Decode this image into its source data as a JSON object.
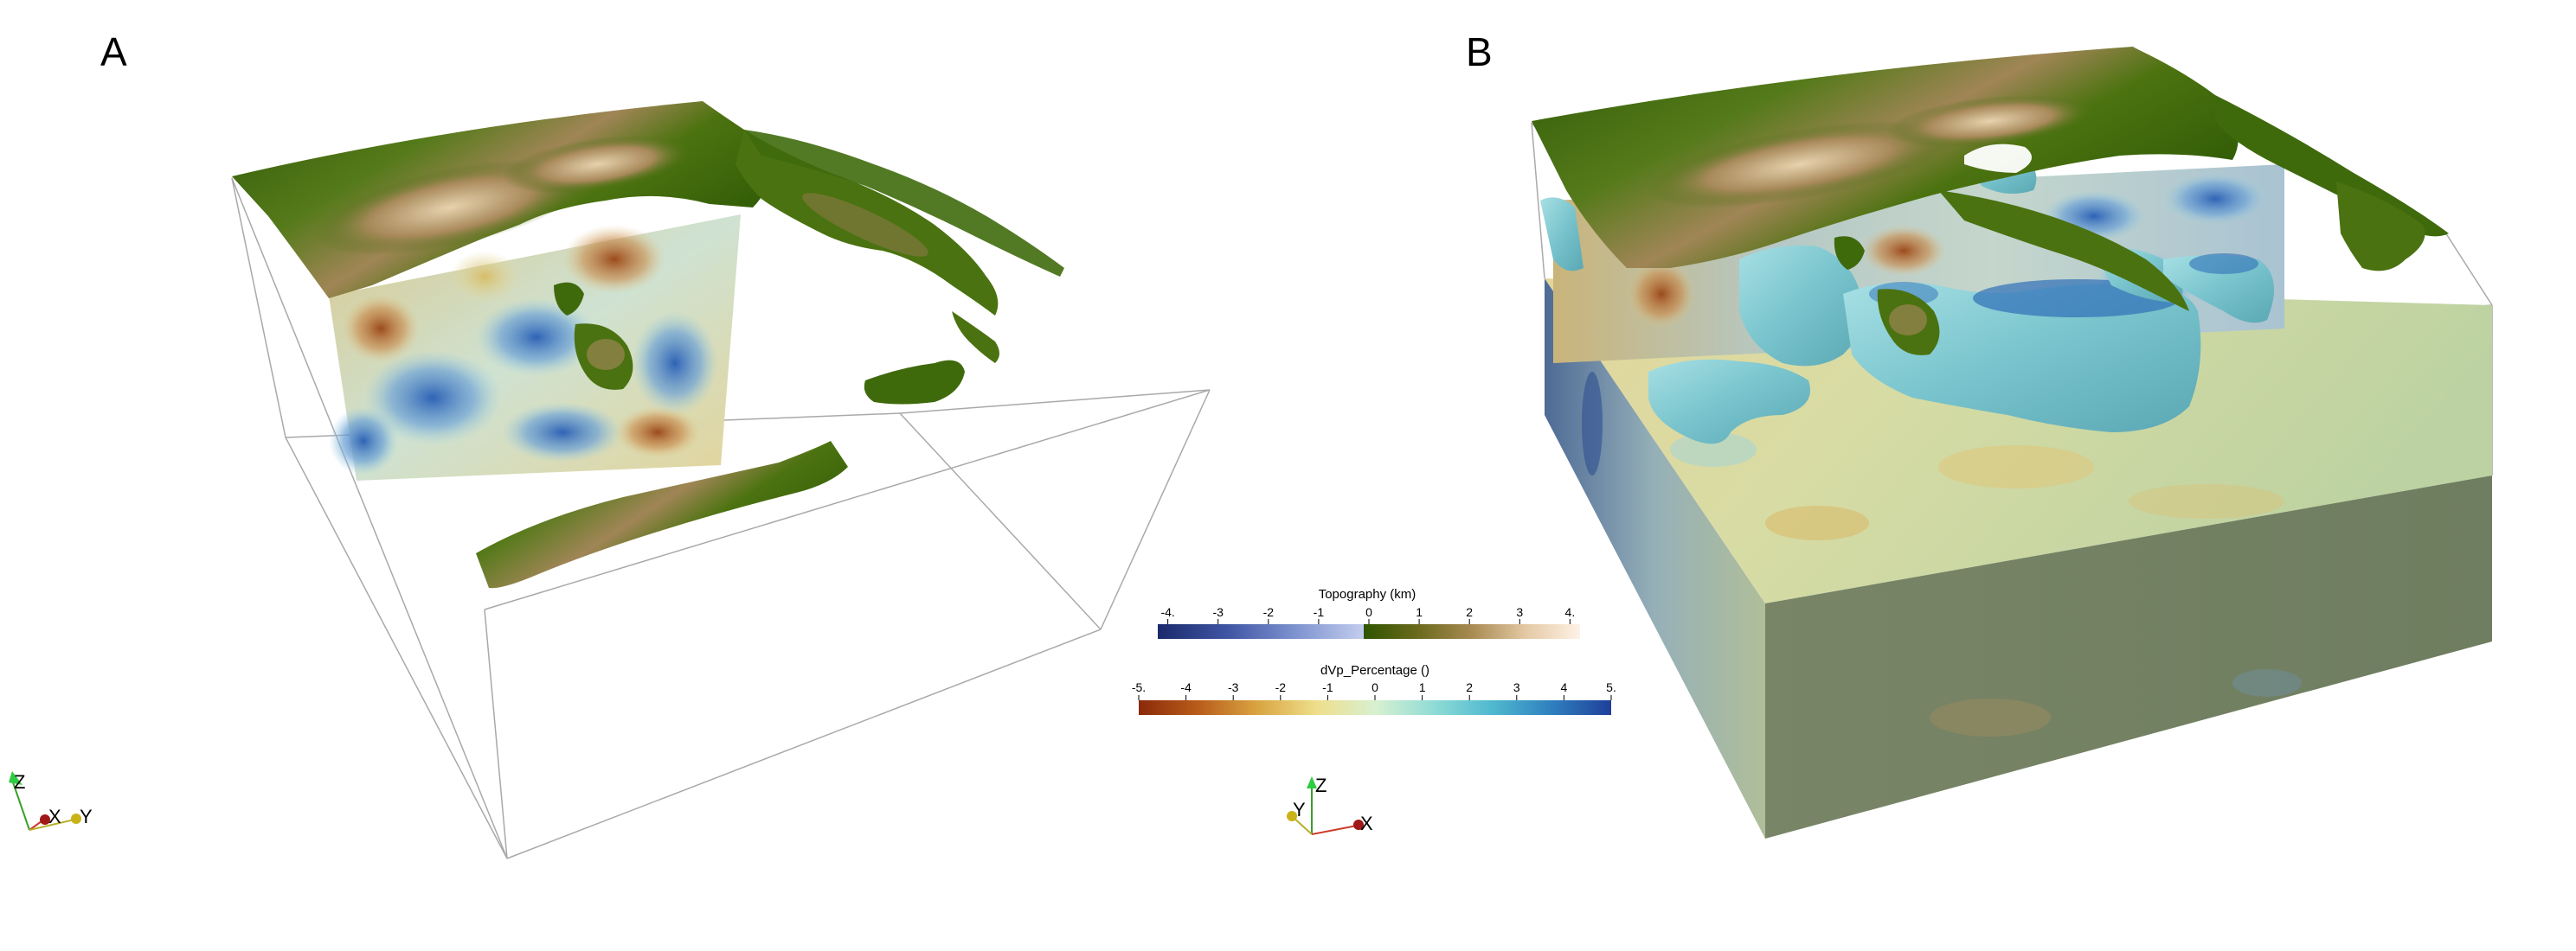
{
  "panels": [
    {
      "id": "A",
      "label": "A"
    },
    {
      "id": "B",
      "label": "B"
    }
  ],
  "colorbars": {
    "topography": {
      "title": "Topography  (km)",
      "ticks": [
        "-4.",
        "-3",
        "-2",
        "-1",
        "0",
        "1",
        "2",
        "3",
        "4."
      ],
      "tick_values": [
        -4,
        -3,
        -2,
        -1,
        0,
        1,
        2,
        3,
        4
      ],
      "range": [
        -4.2,
        4.2
      ],
      "colors_negative": [
        "#1b2a6b",
        "#3f54a3",
        "#7d92cf",
        "#c3cdee"
      ],
      "colors_positive": [
        "#2f5400",
        "#6b6a1d",
        "#a88a52",
        "#e4c9a4",
        "#fff2e6"
      ]
    },
    "dvp": {
      "title": "dVp_Percentage  ()",
      "ticks": [
        "-5.",
        "-4",
        "-3",
        "-2",
        "-1",
        "0",
        "1",
        "2",
        "3",
        "4",
        "5."
      ],
      "tick_values": [
        -5,
        -4,
        -3,
        -2,
        -1,
        0,
        1,
        2,
        3,
        4,
        5
      ],
      "range": [
        -5,
        5
      ],
      "colors": [
        "#8a2a0a",
        "#b85c1a",
        "#d9a441",
        "#eede8a",
        "#d8f0d0",
        "#8fdcd6",
        "#4fb8cf",
        "#2f7fbf",
        "#1f3f99"
      ]
    }
  },
  "axes": {
    "A": {
      "z": "Z",
      "x": "X",
      "y": "Y"
    },
    "B": {
      "z": "Z",
      "y": "Y",
      "x": "X"
    }
  },
  "colors": {
    "land_green": "#3f6a0c",
    "mountain_tan": "#b99c6b",
    "box_edge": "#a9a9a9",
    "slab_cyan": "#7ccfd6",
    "block_top": "#c8d9a4",
    "block_side": "#7d8a6a"
  }
}
